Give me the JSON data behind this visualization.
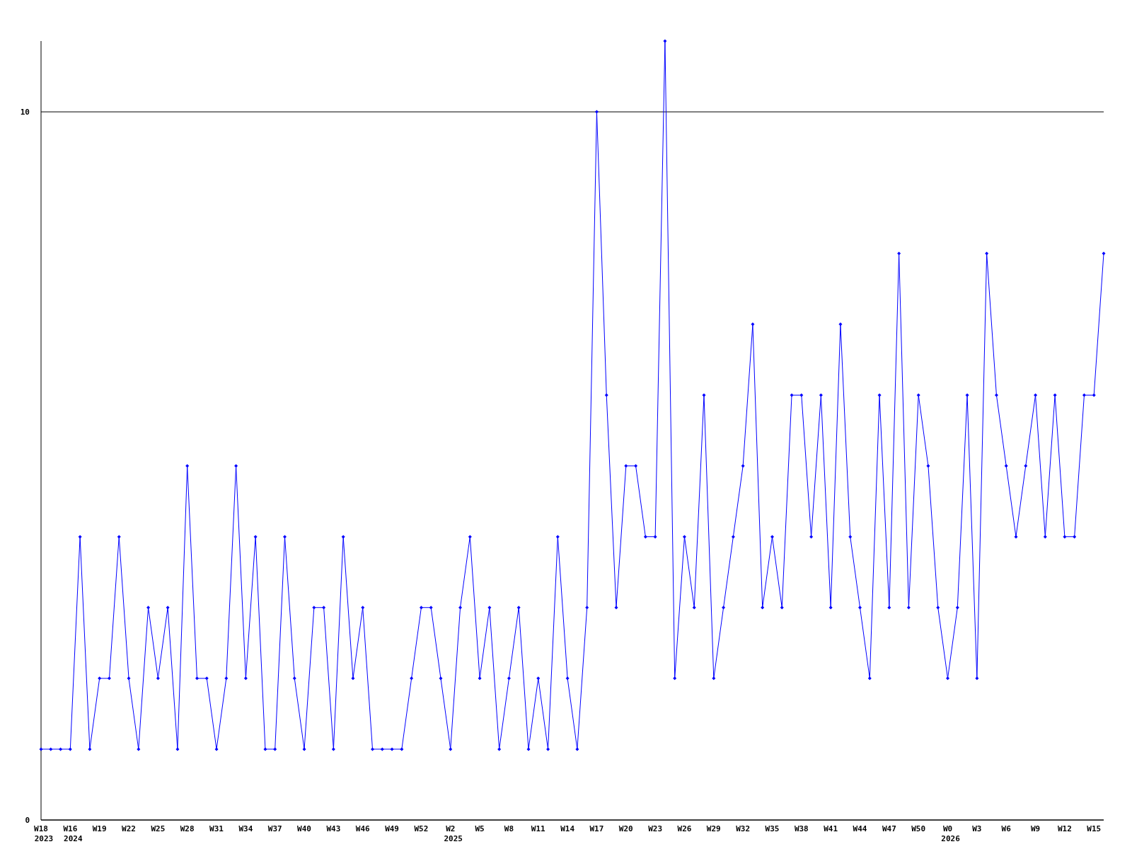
{
  "chart_data": {
    "type": "line",
    "categories": [
      "W18\n2023",
      null,
      null,
      "W16\n2024",
      null,
      null,
      "W19",
      null,
      null,
      "W22",
      null,
      null,
      "W25",
      null,
      null,
      "W28",
      null,
      null,
      "W31",
      null,
      null,
      "W34",
      null,
      null,
      "W37",
      null,
      null,
      "W40",
      null,
      null,
      "W43",
      null,
      null,
      "W46",
      null,
      null,
      "W49",
      null,
      null,
      "W52",
      null,
      null,
      "W2\n2025",
      null,
      null,
      "W5",
      null,
      null,
      "W8",
      null,
      null,
      "W11",
      null,
      null,
      "W14",
      null,
      null,
      "W17",
      null,
      null,
      "W20",
      null,
      null,
      "W23",
      null,
      null,
      "W26",
      null,
      null,
      "W29",
      null,
      null,
      "W32",
      null,
      null,
      "W35",
      null,
      null,
      "W38",
      null,
      null,
      "W41",
      null,
      null,
      "W44",
      null,
      null,
      "W47",
      null,
      null,
      "W50",
      null,
      null,
      "W0\n2026",
      null,
      null,
      "W3",
      null,
      null,
      "W6",
      null,
      null,
      "W9",
      null,
      null,
      "W12",
      null,
      null,
      "W15",
      null
    ],
    "series": [
      {
        "color": "#0000ff",
        "values": [
          1,
          1,
          1,
          1,
          4,
          1,
          2,
          2,
          4,
          2,
          1,
          3,
          2,
          3,
          1,
          5,
          2,
          2,
          1,
          2,
          5,
          2,
          4,
          1,
          1,
          4,
          2,
          1,
          3,
          3,
          1,
          4,
          2,
          3,
          1,
          1,
          1,
          1,
          2,
          3,
          3,
          2,
          1,
          3,
          4,
          2,
          3,
          1,
          2,
          3,
          1,
          2,
          1,
          4,
          2,
          1,
          3,
          10,
          6,
          3,
          5,
          5,
          4,
          4,
          11,
          2,
          4,
          3,
          6,
          2,
          3,
          4,
          5,
          7,
          3,
          4,
          3,
          6,
          6,
          4,
          6,
          3,
          7,
          4,
          3,
          2,
          6,
          3,
          8,
          3,
          6,
          5,
          3,
          2,
          3,
          6,
          2,
          8,
          6,
          5,
          4,
          5,
          6,
          4,
          6,
          4,
          4,
          6,
          6,
          8
        ]
      }
    ],
    "ylim": [
      0,
      11
    ],
    "yticks": [
      0,
      10
    ],
    "grid": "y",
    "marker": "diamond",
    "line_style": "solid"
  }
}
